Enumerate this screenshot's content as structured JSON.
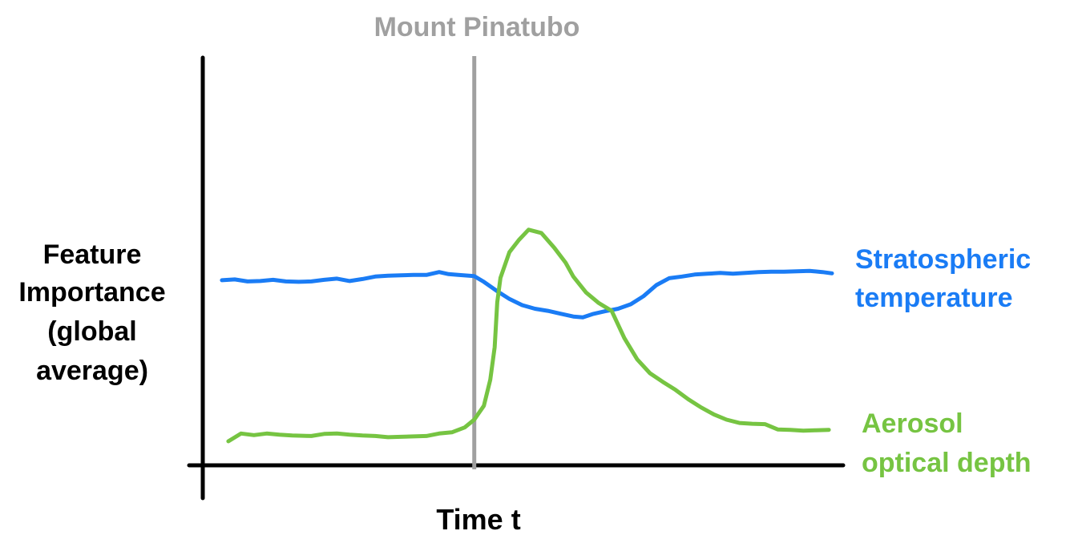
{
  "chart_data": {
    "type": "line",
    "title": "",
    "xlabel": "Time t",
    "ylabel": [
      "Feature",
      "Importance",
      "(global",
      "average)"
    ],
    "xlim": [
      0,
      100
    ],
    "ylim": [
      0,
      1
    ],
    "grid": false,
    "legend": "right",
    "annotations": [
      {
        "label": "Mount Pinatubo",
        "x": 42.5,
        "type": "vertical-line",
        "color": "#a0a0a0"
      }
    ],
    "series": [
      {
        "name": [
          "Stratospheric",
          "temperature"
        ],
        "color": "#1a7cf5",
        "points": [
          [
            3,
            0.454
          ],
          [
            5,
            0.456
          ],
          [
            7,
            0.451
          ],
          [
            9,
            0.452
          ],
          [
            11,
            0.455
          ],
          [
            13,
            0.451
          ],
          [
            15,
            0.45
          ],
          [
            17,
            0.451
          ],
          [
            19,
            0.455
          ],
          [
            21,
            0.458
          ],
          [
            23,
            0.452
          ],
          [
            25,
            0.457
          ],
          [
            27,
            0.463
          ],
          [
            29,
            0.465
          ],
          [
            31,
            0.466
          ],
          [
            33,
            0.467
          ],
          [
            35,
            0.467
          ],
          [
            37,
            0.474
          ],
          [
            38.5,
            0.469
          ],
          [
            40,
            0.467
          ],
          [
            42.5,
            0.464
          ],
          [
            44,
            0.45
          ],
          [
            46,
            0.428
          ],
          [
            48,
            0.408
          ],
          [
            50,
            0.393
          ],
          [
            52,
            0.384
          ],
          [
            54,
            0.379
          ],
          [
            56,
            0.372
          ],
          [
            58,
            0.365
          ],
          [
            59.5,
            0.363
          ],
          [
            61,
            0.371
          ],
          [
            63,
            0.378
          ],
          [
            65,
            0.384
          ],
          [
            67,
            0.395
          ],
          [
            69,
            0.415
          ],
          [
            71,
            0.442
          ],
          [
            73,
            0.459
          ],
          [
            75,
            0.463
          ],
          [
            77,
            0.468
          ],
          [
            79,
            0.47
          ],
          [
            81,
            0.472
          ],
          [
            83,
            0.47
          ],
          [
            85,
            0.472
          ],
          [
            87,
            0.474
          ],
          [
            89,
            0.475
          ],
          [
            91,
            0.475
          ],
          [
            93,
            0.476
          ],
          [
            95,
            0.477
          ],
          [
            97,
            0.474
          ],
          [
            98.5,
            0.471
          ]
        ]
      },
      {
        "name": [
          "Aerosol",
          "optical depth"
        ],
        "color": "#76c442",
        "points": [
          [
            4,
            0.059
          ],
          [
            6,
            0.078
          ],
          [
            8,
            0.074
          ],
          [
            10,
            0.078
          ],
          [
            12,
            0.075
          ],
          [
            14,
            0.073
          ],
          [
            17,
            0.072
          ],
          [
            19,
            0.077
          ],
          [
            21,
            0.078
          ],
          [
            23,
            0.075
          ],
          [
            25,
            0.073
          ],
          [
            27,
            0.072
          ],
          [
            29,
            0.069
          ],
          [
            31,
            0.07
          ],
          [
            33,
            0.071
          ],
          [
            35,
            0.072
          ],
          [
            37,
            0.078
          ],
          [
            39,
            0.081
          ],
          [
            41,
            0.093
          ],
          [
            42.5,
            0.112
          ],
          [
            44,
            0.146
          ],
          [
            45,
            0.21
          ],
          [
            45.7,
            0.29
          ],
          [
            46.1,
            0.4
          ],
          [
            46.6,
            0.46
          ],
          [
            48,
            0.523
          ],
          [
            49.5,
            0.553
          ],
          [
            51,
            0.578
          ],
          [
            53,
            0.57
          ],
          [
            55,
            0.534
          ],
          [
            56.8,
            0.497
          ],
          [
            58,
            0.463
          ],
          [
            60,
            0.424
          ],
          [
            62,
            0.398
          ],
          [
            64,
            0.379
          ],
          [
            66,
            0.312
          ],
          [
            68,
            0.26
          ],
          [
            70,
            0.226
          ],
          [
            72,
            0.205
          ],
          [
            74,
            0.185
          ],
          [
            76,
            0.162
          ],
          [
            78,
            0.142
          ],
          [
            80,
            0.125
          ],
          [
            82,
            0.112
          ],
          [
            84,
            0.104
          ],
          [
            86,
            0.102
          ],
          [
            88,
            0.101
          ],
          [
            90,
            0.088
          ],
          [
            92,
            0.087
          ],
          [
            94,
            0.085
          ],
          [
            96,
            0.086
          ],
          [
            98,
            0.087
          ]
        ]
      }
    ]
  }
}
